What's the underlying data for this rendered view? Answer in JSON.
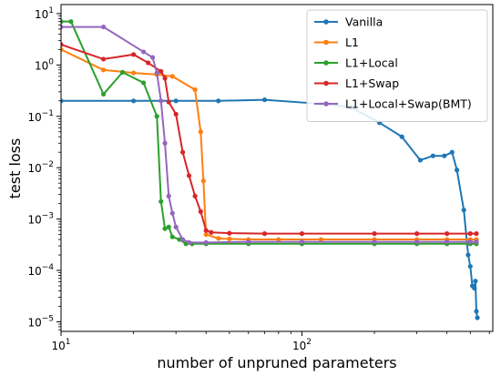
{
  "chart_data": {
    "type": "line",
    "title": "",
    "xlabel": "number of unpruned parameters",
    "ylabel": "test loss",
    "xscale": "log",
    "yscale": "log",
    "xlim": [
      10,
      620
    ],
    "ylim": [
      6.5e-06,
      15
    ],
    "x_ticks": [
      {
        "value": 10,
        "base": "10",
        "exp": "1"
      },
      {
        "value": 100,
        "base": "10",
        "exp": "2"
      }
    ],
    "y_ticks": [
      {
        "value": 1e-05,
        "base": "10",
        "exp": "−5"
      },
      {
        "value": 0.0001,
        "base": "10",
        "exp": "−4"
      },
      {
        "value": 0.001,
        "base": "10",
        "exp": "−3"
      },
      {
        "value": 0.01,
        "base": "10",
        "exp": "−2"
      },
      {
        "value": 0.1,
        "base": "10",
        "exp": "−1"
      },
      {
        "value": 1,
        "base": "10",
        "exp": "0"
      },
      {
        "value": 10,
        "base": "10",
        "exp": "1"
      }
    ],
    "legend_position": "top-right",
    "series": [
      {
        "name": "Vanilla",
        "color": "#1f77b4",
        "points": [
          [
            10,
            0.2
          ],
          [
            20,
            0.2
          ],
          [
            30,
            0.2
          ],
          [
            45,
            0.2
          ],
          [
            70,
            0.21
          ],
          [
            120,
            0.175
          ],
          [
            160,
            0.15
          ],
          [
            210,
            0.075
          ],
          [
            260,
            0.04
          ],
          [
            310,
            0.014
          ],
          [
            350,
            0.017
          ],
          [
            390,
            0.017
          ],
          [
            420,
            0.02
          ],
          [
            440,
            0.009
          ],
          [
            470,
            0.0015
          ],
          [
            490,
            0.0002
          ],
          [
            500,
            0.00012
          ],
          [
            510,
            5e-05
          ],
          [
            520,
            4.5e-05
          ],
          [
            525,
            6.2e-05
          ],
          [
            530,
            1.6e-05
          ],
          [
            535,
            1.2e-05
          ]
        ]
      },
      {
        "name": "L1",
        "color": "#ff7f0e",
        "points": [
          [
            10,
            2.0
          ],
          [
            15,
            0.8
          ],
          [
            20,
            0.7
          ],
          [
            25,
            0.65
          ],
          [
            29,
            0.6
          ],
          [
            36,
            0.33
          ],
          [
            38,
            0.05
          ],
          [
            39,
            0.0055
          ],
          [
            40,
            0.0005
          ],
          [
            45,
            0.00042
          ],
          [
            50,
            0.00041
          ],
          [
            60,
            0.0004
          ],
          [
            80,
            0.0004
          ],
          [
            120,
            0.0004
          ],
          [
            200,
            0.0004
          ],
          [
            300,
            0.0004
          ],
          [
            400,
            0.0004
          ],
          [
            500,
            0.0004
          ],
          [
            530,
            0.0004
          ]
        ]
      },
      {
        "name": "L1+Local",
        "color": "#2ca02c",
        "points": [
          [
            10,
            7.0
          ],
          [
            11,
            7.0
          ],
          [
            15,
            0.27
          ],
          [
            18,
            0.72
          ],
          [
            22,
            0.45
          ],
          [
            25,
            0.1
          ],
          [
            26,
            0.0022
          ],
          [
            27,
            0.00065
          ],
          [
            28,
            0.0007
          ],
          [
            29,
            0.00045
          ],
          [
            31,
            0.0004
          ],
          [
            33,
            0.00033
          ],
          [
            35,
            0.00033
          ],
          [
            40,
            0.00033
          ],
          [
            60,
            0.00033
          ],
          [
            100,
            0.00033
          ],
          [
            200,
            0.00033
          ],
          [
            300,
            0.00033
          ],
          [
            400,
            0.00033
          ],
          [
            500,
            0.00033
          ],
          [
            530,
            0.00033
          ]
        ]
      },
      {
        "name": "L1+Swap",
        "color": "#d62728",
        "points": [
          [
            10,
            2.5
          ],
          [
            15,
            1.3
          ],
          [
            20,
            1.6
          ],
          [
            23,
            1.1
          ],
          [
            26,
            0.75
          ],
          [
            27,
            0.55
          ],
          [
            28,
            0.19
          ],
          [
            30,
            0.11
          ],
          [
            32,
            0.02
          ],
          [
            34,
            0.007
          ],
          [
            36,
            0.0028
          ],
          [
            38,
            0.0014
          ],
          [
            40,
            0.0006
          ],
          [
            42,
            0.00055
          ],
          [
            50,
            0.00053
          ],
          [
            70,
            0.00052
          ],
          [
            100,
            0.00052
          ],
          [
            200,
            0.00052
          ],
          [
            300,
            0.00052
          ],
          [
            400,
            0.00052
          ],
          [
            500,
            0.00052
          ],
          [
            530,
            0.00052
          ]
        ]
      },
      {
        "name": "L1+Local+Swap(BMT)",
        "color": "#9467bd",
        "points": [
          [
            10,
            5.5
          ],
          [
            15,
            5.5
          ],
          [
            22,
            1.8
          ],
          [
            24,
            1.4
          ],
          [
            25,
            0.7
          ],
          [
            26,
            0.2
          ],
          [
            27,
            0.03
          ],
          [
            28,
            0.0028
          ],
          [
            29,
            0.0013
          ],
          [
            30,
            0.0007
          ],
          [
            32,
            0.0004
          ],
          [
            34,
            0.00035
          ],
          [
            40,
            0.00035
          ],
          [
            60,
            0.00036
          ],
          [
            100,
            0.00036
          ],
          [
            200,
            0.00036
          ],
          [
            300,
            0.00036
          ],
          [
            400,
            0.00036
          ],
          [
            500,
            0.00036
          ],
          [
            530,
            0.00036
          ]
        ]
      }
    ]
  }
}
